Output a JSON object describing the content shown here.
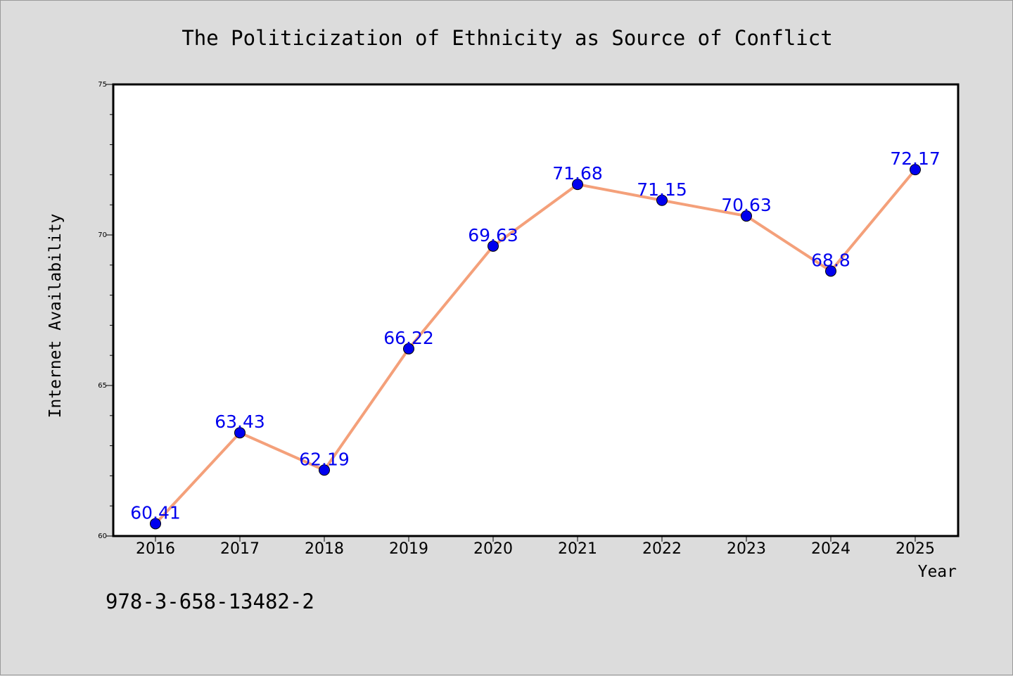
{
  "chart_data": {
    "type": "line",
    "title": "The Politicization of Ethnicity as Source of Conflict",
    "xlabel": "Year",
    "ylabel": "Internet Availability",
    "categories": [
      "2016",
      "2017",
      "2018",
      "2019",
      "2020",
      "2021",
      "2022",
      "2023",
      "2024",
      "2025"
    ],
    "series": [
      {
        "values": [
          60.41,
          63.43,
          62.19,
          66.22,
          69.63,
          71.68,
          71.15,
          70.63,
          68.8,
          72.17
        ],
        "labels": [
          "60.41",
          "63.43",
          "62.19",
          "66.22",
          "69.63",
          "71.68",
          "71.15",
          "70.63",
          "68.8",
          "72.17"
        ],
        "line_color": "#f4a07a",
        "marker_color": "#0000ee",
        "label_color": "#0000ee"
      }
    ],
    "ylim": [
      60,
      75
    ],
    "y_ticks": [
      "60",
      "65",
      "70",
      "75"
    ],
    "grid": false,
    "footnote": "978-3-658-13482-2"
  }
}
